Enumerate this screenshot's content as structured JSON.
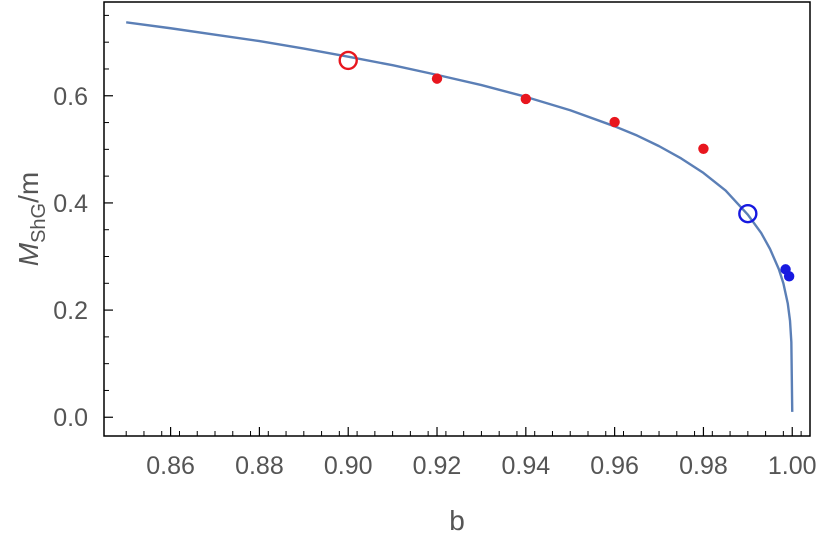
{
  "chart_data": {
    "type": "line",
    "xlabel": "b",
    "ylabel": {
      "main": "M",
      "sub": "ShG",
      "suffix": "/m"
    },
    "xlim": [
      0.845,
      1.004
    ],
    "ylim": [
      -0.035,
      0.775
    ],
    "x_ticks": [
      0.86,
      0.88,
      0.9,
      0.92,
      0.94,
      0.96,
      0.98,
      1.0
    ],
    "x_tick_labels": [
      "0.86",
      "0.88",
      "0.90",
      "0.92",
      "0.94",
      "0.96",
      "0.98",
      "1.00"
    ],
    "y_ticks": [
      0.0,
      0.2,
      0.4,
      0.6
    ],
    "y_tick_labels": [
      "0.0",
      "0.2",
      "0.4",
      "0.6"
    ],
    "grid": false,
    "colors": {
      "curve": "#5b7fb6",
      "red": "#e8161e",
      "blue": "#1719e0",
      "axis": "#000000",
      "text": "#555555"
    },
    "series": [
      {
        "type": "line",
        "x": [
          0.85,
          0.86,
          0.87,
          0.88,
          0.89,
          0.9,
          0.91,
          0.92,
          0.93,
          0.94,
          0.95,
          0.96,
          0.965,
          0.97,
          0.975,
          0.98,
          0.985,
          0.99,
          0.993,
          0.995,
          0.997,
          0.998,
          0.999,
          0.9995,
          0.9998,
          1.0
        ],
        "y": [
          0.737,
          0.726,
          0.714,
          0.702,
          0.688,
          0.673,
          0.657,
          0.639,
          0.62,
          0.598,
          0.573,
          0.543,
          0.526,
          0.506,
          0.483,
          0.456,
          0.423,
          0.378,
          0.344,
          0.314,
          0.276,
          0.25,
          0.212,
          0.18,
          0.14,
          0.01
        ]
      },
      {
        "type": "scatter",
        "marker": "filled",
        "color": "red",
        "x": [
          0.92,
          0.94,
          0.96,
          0.98
        ],
        "y": [
          0.632,
          0.594,
          0.551,
          0.501
        ]
      },
      {
        "type": "scatter",
        "marker": "filled",
        "color": "blue",
        "x": [
          0.9985,
          0.9993
        ],
        "y": [
          0.276,
          0.263
        ]
      },
      {
        "type": "scatter",
        "marker": "open",
        "color": "red",
        "x": [
          0.9
        ],
        "y": [
          0.666
        ]
      },
      {
        "type": "scatter",
        "marker": "open",
        "color": "blue",
        "x": [
          0.99
        ],
        "y": [
          0.38
        ]
      }
    ]
  }
}
